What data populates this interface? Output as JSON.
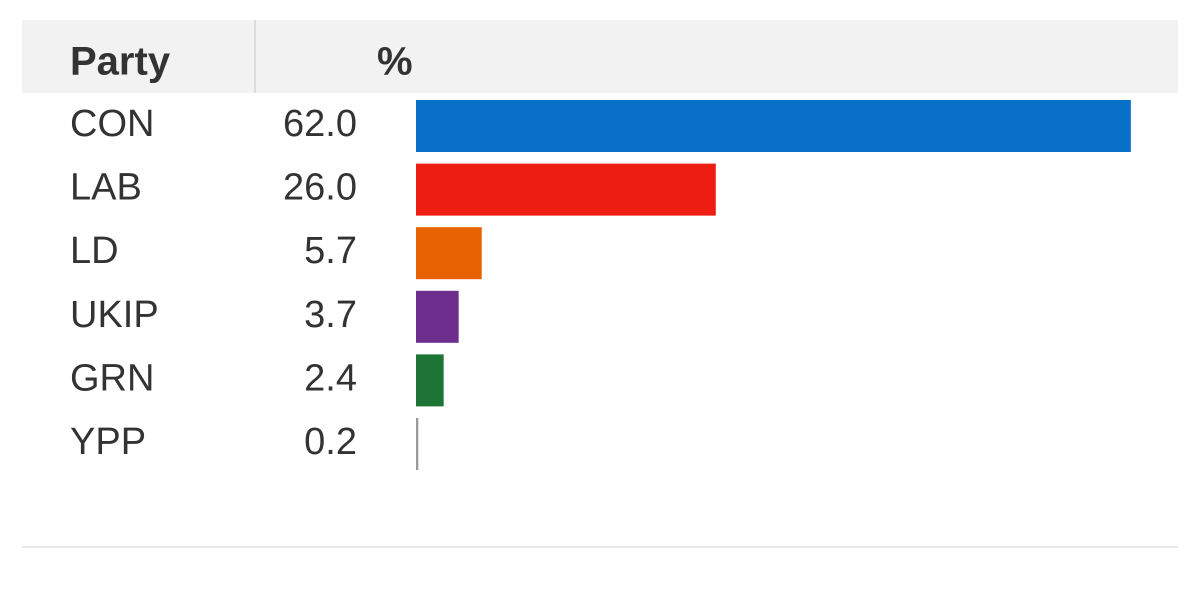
{
  "chart_data": {
    "type": "bar",
    "columns": [
      "Party",
      "%"
    ],
    "categories": [
      "CON",
      "LAB",
      "LD",
      "UKIP",
      "GRN",
      "YPP"
    ],
    "values": [
      62.0,
      26.0,
      5.7,
      3.7,
      2.4,
      0.2
    ],
    "value_labels": [
      "62.0",
      "26.0",
      "5.7",
      "3.7",
      "2.4",
      "0.2"
    ],
    "colors": [
      "#0870c8",
      "#ee1d12",
      "#e86100",
      "#6e2e8d",
      "#1e7434",
      "#999999"
    ]
  }
}
